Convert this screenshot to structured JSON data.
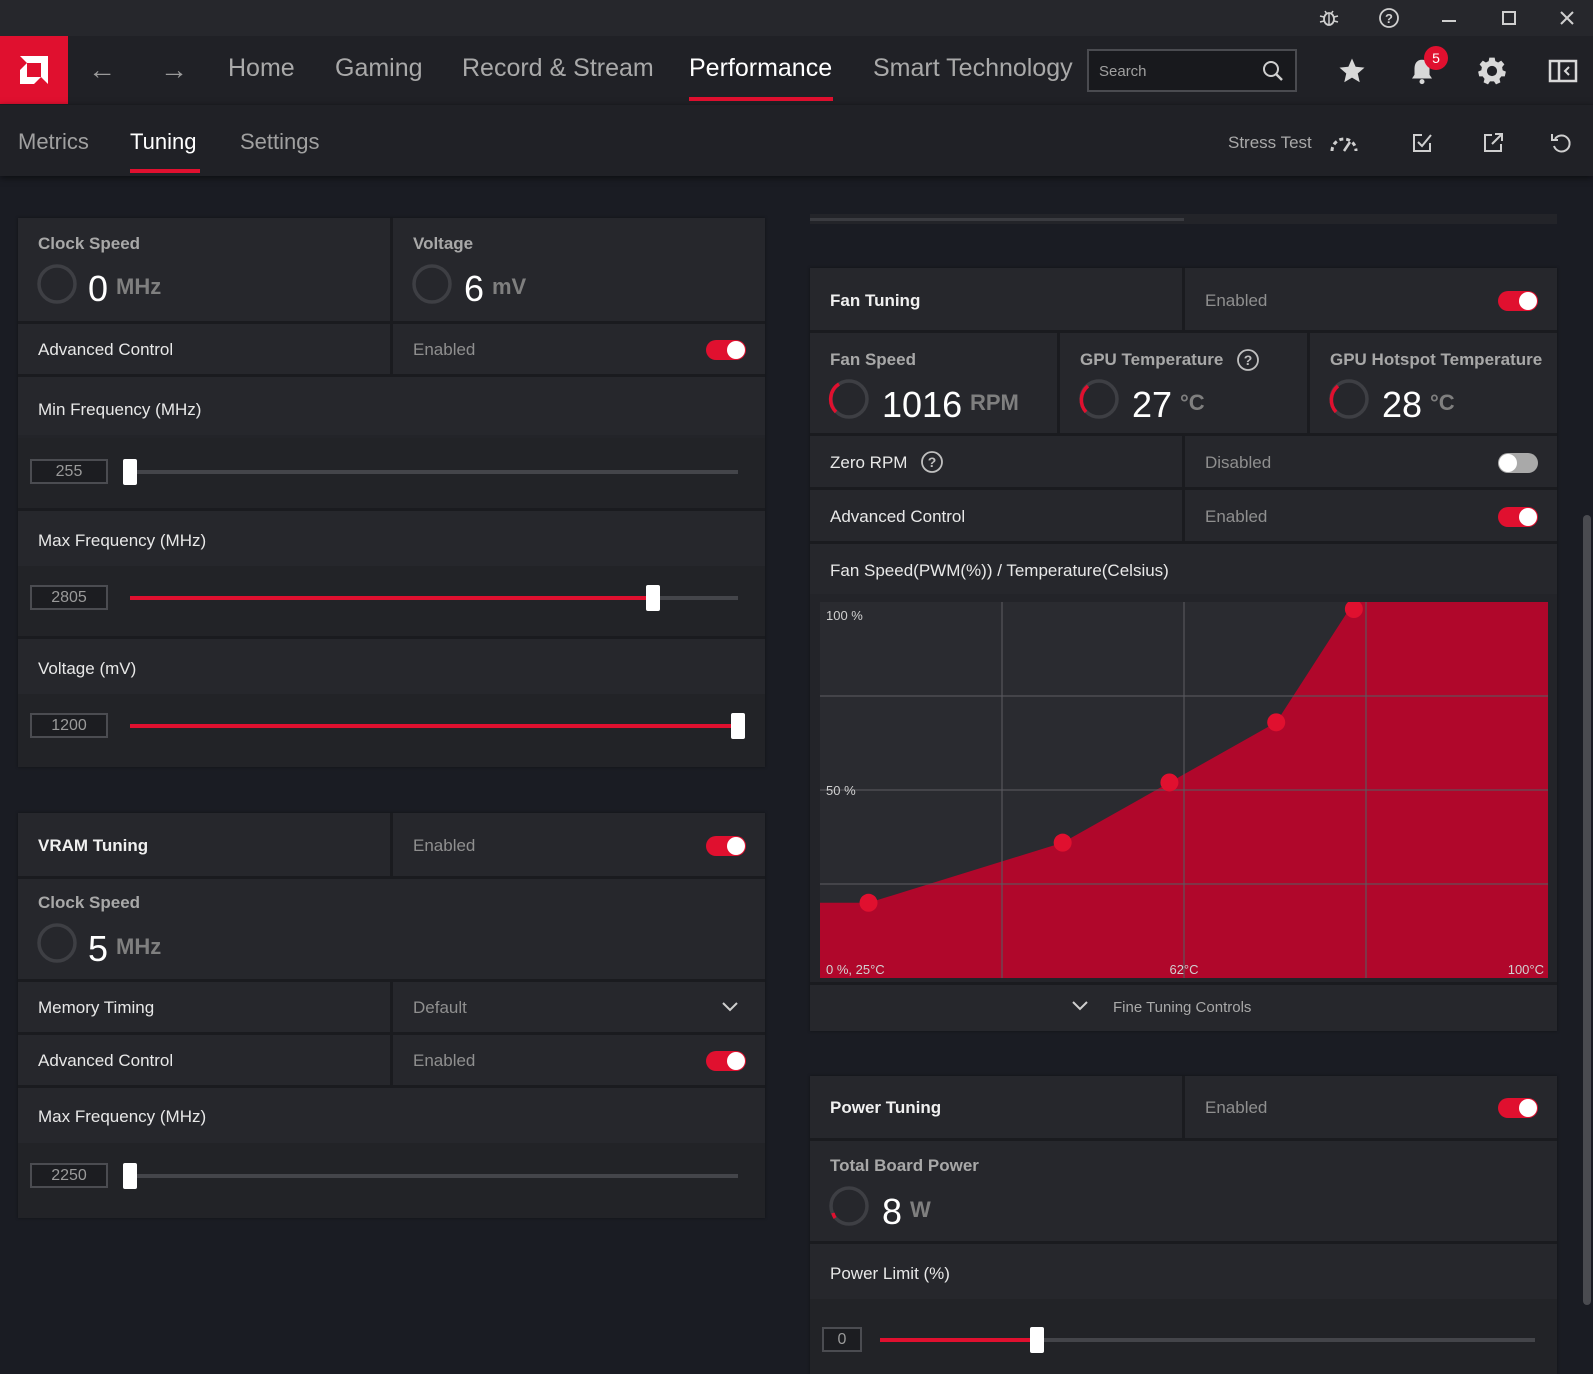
{
  "titlebar": {
    "icons": [
      "bug-icon",
      "help-icon",
      "minimize-icon",
      "maximize-icon",
      "close-icon"
    ]
  },
  "nav": {
    "tabs": [
      "Home",
      "Gaming",
      "Record & Stream",
      "Performance",
      "Smart Technology"
    ],
    "active_tab": "Performance",
    "search_placeholder": "Search",
    "notification_count": "5"
  },
  "subnav": {
    "tabs": [
      "Metrics",
      "Tuning",
      "Settings"
    ],
    "active_tab": "Tuning",
    "stress_test_label": "Stress Test"
  },
  "gpu_tuning": {
    "clock_speed": {
      "label": "Clock Speed",
      "value": "0",
      "unit": "MHz"
    },
    "voltage": {
      "label": "Voltage",
      "value": "6",
      "unit": "mV"
    },
    "advanced_control": {
      "label": "Advanced Control",
      "status": "Enabled",
      "enabled": true
    },
    "min_frequency": {
      "label": "Min Frequency (MHz)",
      "value": "255",
      "fraction": 0.0
    },
    "max_frequency": {
      "label": "Max Frequency (MHz)",
      "value": "2805",
      "fraction": 0.86
    },
    "voltage_slider": {
      "label": "Voltage (mV)",
      "value": "1200",
      "fraction": 1.0
    }
  },
  "vram_tuning": {
    "title": "VRAM Tuning",
    "status": "Enabled",
    "enabled": true,
    "clock_speed": {
      "label": "Clock Speed",
      "value": "5",
      "unit": "MHz"
    },
    "memory_timing": {
      "label": "Memory Timing",
      "value": "Default"
    },
    "advanced_control": {
      "label": "Advanced Control",
      "status": "Enabled",
      "enabled": true
    },
    "max_frequency": {
      "label": "Max Frequency (MHz)",
      "value": "2250",
      "fraction": 0.0
    }
  },
  "fan_tuning": {
    "title": "Fan Tuning",
    "status": "Enabled",
    "enabled": true,
    "fan_speed": {
      "label": "Fan Speed",
      "value": "1016",
      "unit": "RPM"
    },
    "gpu_temperature": {
      "label": "GPU Temperature",
      "value": "27",
      "unit": "°C"
    },
    "gpu_hotspot": {
      "label": "GPU Hotspot Temperature",
      "value": "28",
      "unit": "°C"
    },
    "zero_rpm": {
      "label": "Zero RPM",
      "status": "Disabled",
      "enabled": false
    },
    "advanced_control": {
      "label": "Advanced Control",
      "status": "Enabled",
      "enabled": true
    },
    "curve_title": "Fan Speed(PWM(%)) / Temperature(Celsius)",
    "fine_tuning_label": "Fine Tuning Controls"
  },
  "chart_data": {
    "type": "area",
    "x_unit": "°C",
    "y_unit": "%",
    "xlim": [
      25,
      100
    ],
    "ylim": [
      0,
      100
    ],
    "y_tick_labels": [
      "100 %",
      "50 %"
    ],
    "x_tick_labels": [
      "0 %, 25°C",
      "62°C",
      "100°C"
    ],
    "grid": true,
    "points": [
      {
        "x": 30,
        "y": 20
      },
      {
        "x": 50,
        "y": 36
      },
      {
        "x": 61,
        "y": 52
      },
      {
        "x": 72,
        "y": 68
      },
      {
        "x": 80,
        "y": 100
      }
    ],
    "fill_color": "#b0072b",
    "point_color": "#e0102f"
  },
  "power_tuning": {
    "title": "Power Tuning",
    "status": "Enabled",
    "enabled": true,
    "total_board_power": {
      "label": "Total Board Power",
      "value": "8",
      "unit": "W"
    },
    "power_limit": {
      "label": "Power Limit (%)",
      "value": "0",
      "fraction": 0.24
    }
  },
  "colors": {
    "accent": "#e0102f",
    "background": "#1a1c23",
    "panel": "#26272c"
  }
}
